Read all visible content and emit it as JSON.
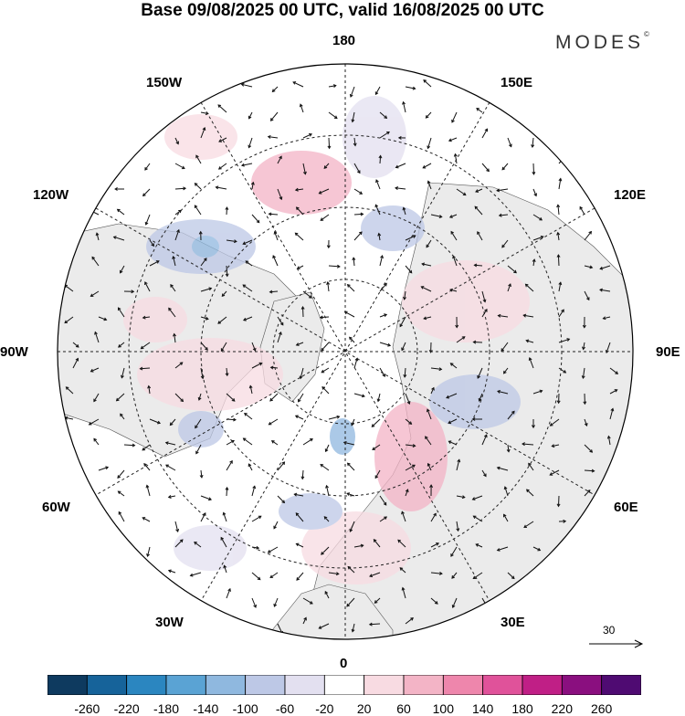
{
  "title": "Base 09/08/2025 00 UTC, valid 16/08/2025 00 UTC",
  "brand": {
    "name": "MODES",
    "mark": "©"
  },
  "longitude_labels": {
    "lon_180": "180",
    "lon_150e": "150E",
    "lon_120e": "120E",
    "lon_90e": "90E",
    "lon_60e": "60E",
    "lon_30e": "30E",
    "lon_0": "0",
    "lon_30w": "30W",
    "lon_60w": "60W",
    "lon_90w": "90W",
    "lon_120w": "120W",
    "lon_150w": "150W"
  },
  "reference_vector": {
    "value": "30"
  },
  "colorbar": {
    "colors": [
      "#0e3a5f",
      "#16639a",
      "#2b86c0",
      "#5aa3d4",
      "#8fb8df",
      "#bdc8e6",
      "#e3e0f0",
      "#ffffff",
      "#f8dbe2",
      "#f3b4c6",
      "#ee86ac",
      "#e0529a",
      "#c01f86",
      "#8a0f7f",
      "#4f0b72"
    ],
    "tick_labels": [
      "-260",
      "-220",
      "-180",
      "-140",
      "-100",
      "-60",
      "-20",
      "20",
      "60",
      "100",
      "140",
      "180",
      "220",
      "260"
    ]
  },
  "anomaly_colors": {
    "positive": "#f3b4c6",
    "positive_light": "#f8dbe2",
    "negative": "#bdc8e6",
    "negative_strong": "#8fb8df",
    "land": "#ebebeb"
  }
}
